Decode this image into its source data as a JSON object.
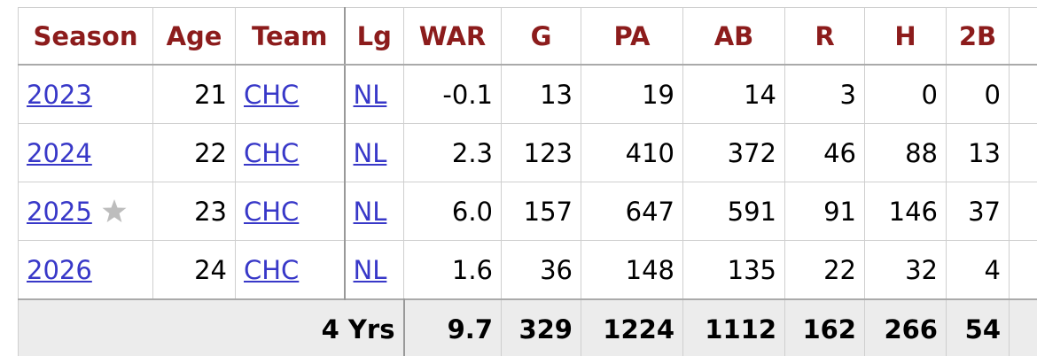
{
  "table": {
    "columns": [
      "Season",
      "Age",
      "Team",
      "Lg",
      "WAR",
      "G",
      "PA",
      "AB",
      "R",
      "H",
      "2B"
    ],
    "rows": [
      [
        "2023",
        "21",
        "CHC",
        "NL",
        "-0.1",
        "13",
        "19",
        "14",
        "3",
        "0",
        "0"
      ],
      [
        "2024",
        "22",
        "CHC",
        "NL",
        "2.3",
        "123",
        "410",
        "372",
        "46",
        "88",
        "13"
      ],
      [
        "2025",
        "23",
        "CHC",
        "NL",
        "6.0",
        "157",
        "647",
        "591",
        "91",
        "146",
        "37"
      ],
      [
        "2026",
        "24",
        "CHC",
        "NL",
        "1.6",
        "36",
        "148",
        "135",
        "22",
        "32",
        "4"
      ]
    ],
    "totals": {
      "label": "4 Yrs",
      "values": [
        "9.7",
        "329",
        "1224",
        "1112",
        "162",
        "266",
        "54"
      ]
    }
  }
}
